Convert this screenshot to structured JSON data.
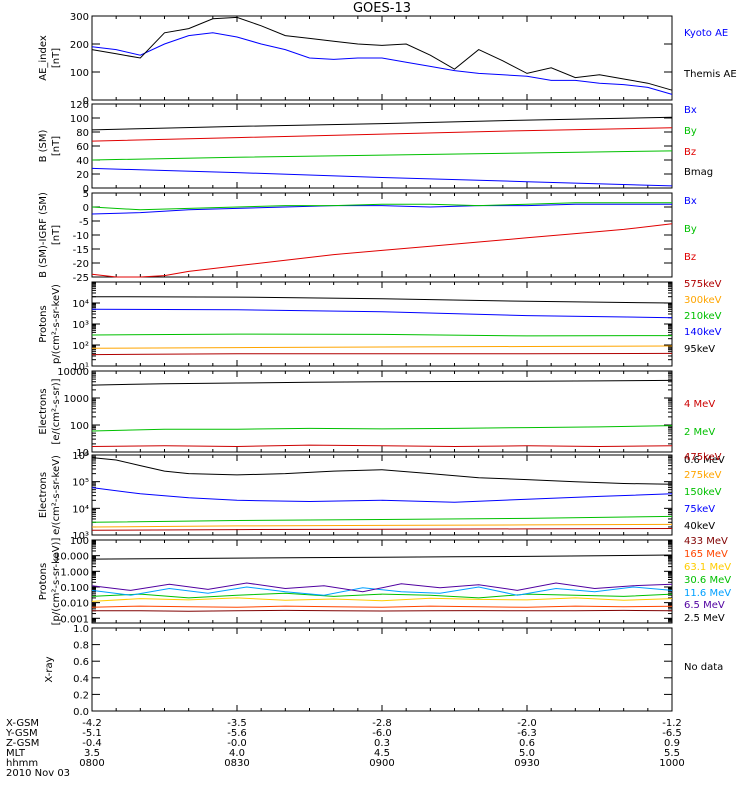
{
  "title": "GOES-13",
  "footer": {
    "rows": [
      {
        "label": "X-GSM",
        "values": [
          "-4.2",
          "-3.5",
          "-2.8",
          "-2.0",
          "-1.2"
        ]
      },
      {
        "label": "Y-GSM",
        "values": [
          "-5.1",
          "-5.6",
          "-6.0",
          "-6.3",
          "-6.5"
        ]
      },
      {
        "label": "Z-GSM",
        "values": [
          "-0.4",
          "-0.0",
          "0.3",
          "0.6",
          "0.9"
        ]
      },
      {
        "label": "MLT",
        "values": [
          "3.5",
          "4.0",
          "4.5",
          "5.0",
          "5.5"
        ]
      },
      {
        "label": "hhmm",
        "values": [
          "0800",
          "0830",
          "0900",
          "0930",
          "1000"
        ]
      }
    ],
    "date": "2010 Nov 03"
  },
  "chart_data": [
    {
      "type": "line",
      "id": "ae",
      "ylabel": [
        "AE_index",
        "[nT]"
      ],
      "ylim": [
        0,
        300
      ],
      "yscale": "linear",
      "yticks": [
        0,
        100,
        200,
        300
      ],
      "yticklabels": [
        "0",
        "100",
        "200",
        "300"
      ],
      "xlim": [
        0,
        120
      ],
      "series": [
        {
          "name": "Kyoto AE",
          "color": "#0000ff",
          "x": [
            0,
            5,
            10,
            15,
            20,
            25,
            30,
            35,
            40,
            45,
            50,
            55,
            60,
            65,
            70,
            75,
            80,
            85,
            90,
            95,
            100,
            105,
            110,
            115,
            120
          ],
          "y": [
            190,
            180,
            160,
            200,
            230,
            240,
            225,
            200,
            180,
            150,
            145,
            150,
            150,
            135,
            120,
            105,
            95,
            90,
            85,
            70,
            70,
            60,
            55,
            45,
            20
          ]
        },
        {
          "name": "Themis AE",
          "color": "#000000",
          "x": [
            0,
            5,
            10,
            15,
            20,
            25,
            30,
            35,
            40,
            45,
            50,
            55,
            60,
            65,
            70,
            75,
            80,
            85,
            90,
            95,
            100,
            105,
            110,
            115,
            120
          ],
          "y": [
            180,
            165,
            150,
            240,
            255,
            290,
            295,
            265,
            230,
            220,
            210,
            200,
            195,
            200,
            160,
            110,
            180,
            140,
            95,
            115,
            80,
            90,
            75,
            60,
            35
          ]
        }
      ]
    },
    {
      "type": "line",
      "id": "b-sm",
      "ylabel": [
        "B (SM)",
        "[nT]"
      ],
      "ylim": [
        0,
        120
      ],
      "yscale": "linear",
      "yticks": [
        0,
        20,
        40,
        60,
        80,
        100,
        120
      ],
      "yticklabels": [
        "0",
        "20",
        "40",
        "60",
        "80",
        "100",
        "120"
      ],
      "xlim": [
        0,
        120
      ],
      "series": [
        {
          "name": "Bx",
          "color": "#0000ff",
          "x": [
            0,
            30,
            60,
            90,
            120
          ],
          "y": [
            28,
            22,
            15,
            9,
            3
          ]
        },
        {
          "name": "By",
          "color": "#00c000",
          "x": [
            0,
            30,
            60,
            90,
            120
          ],
          "y": [
            40,
            44,
            47,
            50,
            53
          ]
        },
        {
          "name": "Bz",
          "color": "#e00000",
          "x": [
            0,
            30,
            60,
            90,
            120
          ],
          "y": [
            67,
            72,
            77,
            82,
            86
          ]
        },
        {
          "name": "Bmag",
          "color": "#000000",
          "x": [
            0,
            30,
            60,
            90,
            120
          ],
          "y": [
            83,
            88,
            92,
            97,
            101
          ]
        }
      ]
    },
    {
      "type": "line",
      "id": "b-igrf",
      "ylabel": [
        "B (SM)-IGRF (SM)",
        "[nT]"
      ],
      "ylim": [
        -25,
        5
      ],
      "yscale": "linear",
      "yticks": [
        -25,
        -20,
        -15,
        -10,
        -5,
        0,
        5
      ],
      "yticklabels": [
        "-25",
        "-20",
        "-15",
        "-10",
        "-5",
        "0",
        "5"
      ],
      "xlim": [
        0,
        120
      ],
      "series": [
        {
          "name": "Bx",
          "color": "#0000ff",
          "x": [
            0,
            10,
            20,
            30,
            40,
            50,
            60,
            70,
            80,
            90,
            100,
            110,
            120
          ],
          "y": [
            -2.5,
            -2,
            -1,
            -0.5,
            0,
            0.5,
            0.5,
            0,
            0.5,
            0.5,
            1,
            1,
            1
          ]
        },
        {
          "name": "By",
          "color": "#00c000",
          "x": [
            0,
            10,
            20,
            30,
            40,
            50,
            60,
            70,
            80,
            90,
            100,
            110,
            120
          ],
          "y": [
            0,
            -1,
            -0.5,
            0,
            0.5,
            0.5,
            1,
            1,
            0.5,
            1,
            1.5,
            1.5,
            1.5
          ]
        },
        {
          "name": "Bz",
          "color": "#e00000",
          "x": [
            0,
            5,
            10,
            15,
            20,
            30,
            40,
            50,
            60,
            70,
            80,
            90,
            100,
            110,
            120
          ],
          "y": [
            -24,
            -25,
            -25,
            -24.5,
            -23,
            -21,
            -19,
            -17,
            -15.5,
            -14,
            -12.5,
            -11,
            -9.5,
            -8,
            -6
          ]
        }
      ]
    },
    {
      "type": "line",
      "id": "protons-kev",
      "ylabel": [
        "Protons",
        "p/(cm²-s-sr-keV)"
      ],
      "ylim": [
        10,
        100000
      ],
      "yscale": "log",
      "yticks": [
        10,
        100,
        1000,
        10000
      ],
      "yticklabels": [
        "10¹",
        "10²",
        "10³",
        "10⁴"
      ],
      "xlim": [
        0,
        120
      ],
      "series": [
        {
          "name": "575keV",
          "color": "#b00000",
          "x": [
            0,
            30,
            60,
            90,
            120
          ],
          "y": [
            35,
            38,
            38,
            38,
            40
          ]
        },
        {
          "name": "300keV",
          "color": "#ffa500",
          "x": [
            0,
            30,
            60,
            90,
            120
          ],
          "y": [
            70,
            75,
            80,
            85,
            90
          ]
        },
        {
          "name": "210keV",
          "color": "#00c000",
          "x": [
            0,
            30,
            60,
            90,
            120
          ],
          "y": [
            300,
            330,
            320,
            270,
            280
          ]
        },
        {
          "name": "140keV",
          "color": "#0000ff",
          "x": [
            0,
            30,
            60,
            90,
            120
          ],
          "y": [
            5000,
            4800,
            3800,
            2500,
            2000
          ]
        },
        {
          "name": "95keV",
          "color": "#000000",
          "x": [
            0,
            30,
            60,
            90,
            120
          ],
          "y": [
            20000,
            19000,
            16000,
            12000,
            10000
          ]
        }
      ]
    },
    {
      "type": "line",
      "id": "electrons-mev",
      "ylabel": [
        "Electrons",
        "[e/(cm²-s-sr)]"
      ],
      "ylim": [
        10,
        10000
      ],
      "yscale": "log",
      "yticks": [
        10,
        100,
        1000,
        10000
      ],
      "yticklabels": [
        "10",
        "100",
        "1000",
        "10000"
      ],
      "xlim": [
        0,
        120
      ],
      "series": [
        {
          "name": "4 MeV",
          "color": "#cc0000",
          "x": [
            0,
            15,
            30,
            45,
            60,
            75,
            90,
            105,
            120
          ],
          "y": [
            16,
            17,
            16,
            18,
            17,
            16,
            17,
            16,
            17
          ]
        },
        {
          "name": "2 MeV",
          "color": "#00c000",
          "x": [
            0,
            15,
            30,
            45,
            60,
            75,
            90,
            105,
            120
          ],
          "y": [
            60,
            70,
            70,
            75,
            72,
            75,
            80,
            85,
            95
          ]
        },
        {
          "name": "0.6 MeV",
          "color": "#000000",
          "x": [
            0,
            15,
            30,
            45,
            60,
            75,
            90,
            105,
            120
          ],
          "y": [
            3000,
            3400,
            3600,
            3800,
            4000,
            4100,
            4200,
            4300,
            4500
          ]
        }
      ]
    },
    {
      "type": "line",
      "id": "electrons-kev",
      "ylabel": [
        "Electrons",
        "e/(cm²-s-sr-keV)"
      ],
      "ylim": [
        1000,
        1000000
      ],
      "yscale": "log",
      "yticks": [
        1000,
        10000,
        100000,
        1000000
      ],
      "yticklabels": [
        "10³",
        "10⁴",
        "10⁵",
        "10⁶"
      ],
      "xlim": [
        0,
        120
      ],
      "series": [
        {
          "name": "475keV",
          "color": "#b00000",
          "x": [
            0,
            30,
            60,
            90,
            120
          ],
          "y": [
            1500,
            1600,
            1650,
            1700,
            1750
          ]
        },
        {
          "name": "275keV",
          "color": "#ffa500",
          "x": [
            0,
            30,
            60,
            90,
            120
          ],
          "y": [
            2000,
            2200,
            2300,
            2400,
            2500
          ]
        },
        {
          "name": "150keV",
          "color": "#00c000",
          "x": [
            0,
            30,
            60,
            90,
            120
          ],
          "y": [
            3000,
            3500,
            3800,
            4200,
            5000
          ]
        },
        {
          "name": "75keV",
          "color": "#0000ff",
          "x": [
            0,
            10,
            20,
            30,
            45,
            60,
            75,
            90,
            105,
            120
          ],
          "y": [
            60000,
            35000,
            25000,
            20000,
            18000,
            20000,
            17000,
            22000,
            28000,
            35000
          ]
        },
        {
          "name": "40keV",
          "color": "#000000",
          "x": [
            0,
            5,
            10,
            15,
            20,
            30,
            40,
            50,
            60,
            70,
            80,
            90,
            100,
            110,
            120
          ],
          "y": [
            800000,
            650000,
            400000,
            250000,
            200000,
            180000,
            200000,
            250000,
            280000,
            200000,
            140000,
            120000,
            100000,
            85000,
            80000
          ]
        }
      ]
    },
    {
      "type": "line",
      "id": "protons-mev",
      "ylabel": [
        "Protons",
        "[p/(cm²-s-sr-keV)]"
      ],
      "ylim": [
        0.0005,
        100
      ],
      "yscale": "log",
      "yticks": [
        0.001,
        0.01,
        0.1,
        1,
        10,
        100
      ],
      "yticklabels": [
        "0.001",
        "0.010",
        "0.100",
        "1.000",
        "10.000",
        "100"
      ],
      "xlim": [
        0,
        120
      ],
      "series": [
        {
          "name": "433 MeV",
          "color": "#800000",
          "x": [
            0,
            10,
            20,
            30,
            40,
            50,
            60,
            70,
            80,
            90,
            100,
            110,
            120
          ],
          "y": [
            0.003,
            0.003,
            0.0028,
            0.003,
            0.0032,
            0.003,
            0.0029,
            0.003,
            0.0031,
            0.003,
            0.003,
            0.0032,
            0.003
          ]
        },
        {
          "name": "165 MeV",
          "color": "#ff4500",
          "x": [
            0,
            10,
            20,
            30,
            40,
            50,
            60,
            70,
            80,
            90,
            100,
            110,
            120
          ],
          "y": [
            0.005,
            0.006,
            0.0055,
            0.005,
            0.006,
            0.0055,
            0.005,
            0.006,
            0.0055,
            0.005,
            0.006,
            0.0055,
            0.0058
          ]
        },
        {
          "name": "63.1 MeV",
          "color": "#ffcc00",
          "x": [
            0,
            10,
            20,
            30,
            40,
            50,
            60,
            70,
            80,
            90,
            100,
            110,
            120
          ],
          "y": [
            0.012,
            0.018,
            0.015,
            0.02,
            0.014,
            0.017,
            0.013,
            0.019,
            0.016,
            0.015,
            0.02,
            0.014,
            0.018
          ]
        },
        {
          "name": "30.6 MeV",
          "color": "#00c000",
          "x": [
            0,
            10,
            20,
            30,
            40,
            50,
            60,
            70,
            80,
            90,
            100,
            110,
            120
          ],
          "y": [
            0.025,
            0.035,
            0.02,
            0.03,
            0.04,
            0.025,
            0.035,
            0.03,
            0.02,
            0.035,
            0.03,
            0.025,
            0.035
          ]
        },
        {
          "name": "11.6 MeV",
          "color": "#00a0ff",
          "x": [
            0,
            8,
            16,
            24,
            32,
            40,
            48,
            56,
            64,
            72,
            80,
            88,
            96,
            104,
            112,
            120
          ],
          "y": [
            0.06,
            0.03,
            0.08,
            0.04,
            0.1,
            0.05,
            0.03,
            0.09,
            0.05,
            0.04,
            0.1,
            0.03,
            0.08,
            0.05,
            0.1,
            0.06
          ]
        },
        {
          "name": "6.5 MeV",
          "color": "#5000a0",
          "x": [
            0,
            8,
            16,
            24,
            32,
            40,
            48,
            56,
            64,
            72,
            80,
            88,
            96,
            104,
            112,
            120
          ],
          "y": [
            0.12,
            0.06,
            0.15,
            0.07,
            0.18,
            0.08,
            0.12,
            0.05,
            0.16,
            0.09,
            0.14,
            0.06,
            0.18,
            0.08,
            0.12,
            0.15
          ]
        },
        {
          "name": "2.5 MeV",
          "color": "#000000",
          "x": [
            0,
            15,
            30,
            45,
            60,
            75,
            90,
            105,
            120
          ],
          "y": [
            6,
            6.5,
            7,
            7.5,
            8,
            8.5,
            9,
            10,
            11
          ]
        }
      ]
    },
    {
      "type": "line",
      "id": "xray",
      "ylabel": [
        "X-ray"
      ],
      "ylim": [
        0,
        1
      ],
      "yscale": "linear",
      "yticks": [
        0,
        0.2,
        0.4,
        0.6,
        0.8,
        1.0
      ],
      "yticklabels": [
        "0.0",
        "0.2",
        "0.4",
        "0.6",
        "0.8",
        "1.0"
      ],
      "xlim": [
        0,
        120
      ],
      "series": [],
      "annotation": "No data"
    }
  ]
}
